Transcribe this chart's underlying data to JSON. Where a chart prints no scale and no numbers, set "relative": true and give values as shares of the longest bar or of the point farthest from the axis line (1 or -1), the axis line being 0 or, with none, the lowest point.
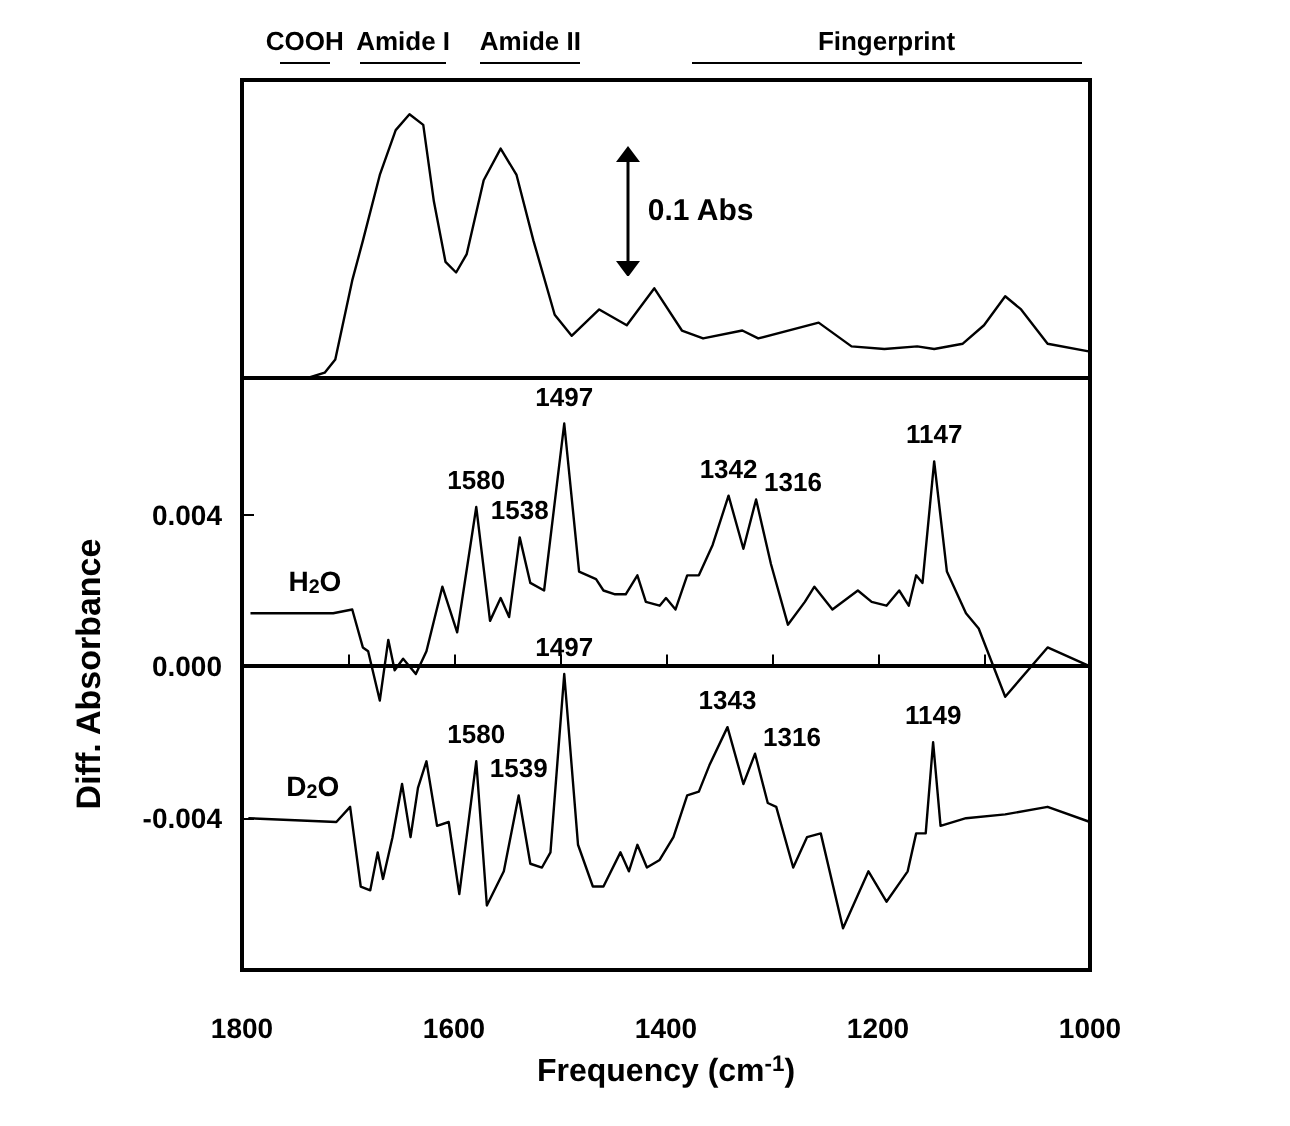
{
  "chart_data": [
    {
      "type": "line",
      "relative": true,
      "xlim": [
        1800,
        1000
      ],
      "annotations": [
        "0.1 Abs",
        "COOH",
        "Amide I",
        "Amide II",
        "Fingerprint"
      ],
      "series": [
        {
          "color": "#000000",
          "x": [
            1797,
            1738,
            1722,
            1712,
            1696,
            1686,
            1670,
            1655,
            1642,
            1629,
            1619,
            1608,
            1598,
            1588,
            1572,
            1556,
            1541,
            1525,
            1505,
            1489,
            1463,
            1437,
            1411,
            1385,
            1365,
            1328,
            1313,
            1256,
            1225,
            1194,
            1163,
            1147,
            1120,
            1100,
            1080,
            1065,
            1040,
            1000
          ],
          "values": [
            0.0,
            0.0,
            0.02,
            0.07,
            0.37,
            0.52,
            0.77,
            0.94,
            1.0,
            0.96,
            0.67,
            0.44,
            0.4,
            0.47,
            0.75,
            0.87,
            0.77,
            0.52,
            0.24,
            0.16,
            0.26,
            0.2,
            0.34,
            0.18,
            0.15,
            0.18,
            0.15,
            0.21,
            0.12,
            0.11,
            0.12,
            0.11,
            0.13,
            0.2,
            0.31,
            0.26,
            0.13,
            0.1
          ]
        }
      ]
    },
    {
      "type": "line",
      "xlim": [
        1800,
        1000
      ],
      "ylim": [
        -0.008,
        0.0076
      ],
      "xlabel": "Frequency (cm$^{-1}$)",
      "ylabel": "Diff. Absorbance",
      "xticks": [
        1800,
        {
          "value": 1700,
          "label": null
        },
        1600,
        {
          "value": 1500,
          "label": null
        },
        1400,
        {
          "value": 1300,
          "label": null
        },
        1200,
        {
          "value": 1100,
          "label": null
        },
        1000
      ],
      "yticks": [
        {
          "value": -0.004,
          "label": "-0.004"
        },
        {
          "value": 0,
          "label": "0.000"
        },
        {
          "value": 0.004,
          "label": "0.004"
        }
      ],
      "annotations": [
        {
          "text": "1580",
          "x": 1579,
          "y": 0.0042
        },
        {
          "text": "1538",
          "x": 1538,
          "y": 0.0034
        },
        {
          "text": "1497",
          "x": 1496,
          "y": 0.0064
        },
        {
          "text": "1342",
          "x": 1341,
          "y": 0.0045
        },
        {
          "text": "1316",
          "x": 1315,
          "y": 0.0044
        },
        {
          "text": "1147",
          "x": 1147,
          "y": 0.0054
        },
        {
          "text": "1580",
          "x": 1579,
          "y": -0.0025
        },
        {
          "text": "1539",
          "x": 1539,
          "y": -0.0034
        },
        {
          "text": "1497",
          "x": 1496,
          "y": -0.0002
        },
        {
          "text": "1343",
          "x": 1342,
          "y": -0.0016
        },
        {
          "text": "1316",
          "x": 1316,
          "y": -0.0023
        },
        {
          "text": "1149",
          "x": 1148,
          "y": -0.002
        }
      ],
      "series": [
        {
          "name": "H$_{2}$O",
          "color": "#000000",
          "x": [
            1792,
            1714,
            1696,
            1686,
            1681,
            1670,
            1662,
            1656,
            1648,
            1636,
            1626,
            1611,
            1597,
            1579,
            1566,
            1556,
            1548,
            1538,
            1528,
            1515,
            1496,
            1482,
            1466,
            1459,
            1448,
            1438,
            1427,
            1419,
            1406,
            1400,
            1391,
            1380,
            1369,
            1356,
            1341,
            1327,
            1315,
            1301,
            1285,
            1269,
            1260,
            1243,
            1219,
            1206,
            1192,
            1180,
            1171,
            1164,
            1158,
            1147,
            1135,
            1117,
            1105,
            1080,
            1040,
            1000
          ],
          "values": [
            0.0014,
            0.0014,
            0.0015,
            0.0005,
            0.0004,
            -0.0009,
            0.0007,
            -0.0001,
            0.0002,
            -0.0002,
            0.0004,
            0.0021,
            0.0009,
            0.0042,
            0.0012,
            0.0018,
            0.0013,
            0.0034,
            0.0022,
            0.002,
            0.0064,
            0.0025,
            0.0023,
            0.002,
            0.0019,
            0.0019,
            0.0024,
            0.0017,
            0.0016,
            0.0018,
            0.0015,
            0.0024,
            0.0024,
            0.0032,
            0.0045,
            0.0031,
            0.0044,
            0.0027,
            0.0011,
            0.0017,
            0.0021,
            0.0015,
            0.002,
            0.0017,
            0.0016,
            0.002,
            0.0016,
            0.0024,
            0.0022,
            0.0054,
            0.0025,
            0.0014,
            0.001,
            -0.0008,
            0.0005,
            0.0
          ]
        },
        {
          "name": "D$_{2}$O",
          "color": "#000000",
          "x": [
            1794,
            1711,
            1698,
            1688,
            1679,
            1672,
            1667,
            1658,
            1649,
            1641,
            1634,
            1626,
            1616,
            1605,
            1595,
            1579,
            1569,
            1553,
            1539,
            1528,
            1517,
            1509,
            1496,
            1483,
            1469,
            1459,
            1443,
            1435,
            1427,
            1418,
            1406,
            1393,
            1380,
            1369,
            1359,
            1342,
            1327,
            1316,
            1304,
            1296,
            1280,
            1267,
            1254,
            1233,
            1209,
            1192,
            1172,
            1164,
            1155,
            1148,
            1141,
            1117,
            1080,
            1040,
            1000
          ],
          "values": [
            -0.004,
            -0.0041,
            -0.0037,
            -0.0058,
            -0.0059,
            -0.0049,
            -0.0056,
            -0.0045,
            -0.0031,
            -0.0045,
            -0.0032,
            -0.0025,
            -0.0042,
            -0.0041,
            -0.006,
            -0.0025,
            -0.0063,
            -0.0054,
            -0.0034,
            -0.0052,
            -0.0053,
            -0.0049,
            -0.0002,
            -0.0047,
            -0.0058,
            -0.0058,
            -0.0049,
            -0.0054,
            -0.0047,
            -0.0053,
            -0.0051,
            -0.0045,
            -0.0034,
            -0.0033,
            -0.0026,
            -0.0016,
            -0.0031,
            -0.0023,
            -0.0036,
            -0.0037,
            -0.0053,
            -0.0045,
            -0.0044,
            -0.0069,
            -0.0054,
            -0.0062,
            -0.0054,
            -0.0044,
            -0.0044,
            -0.002,
            -0.0042,
            -0.004,
            -0.0039,
            -0.0037,
            -0.0041
          ]
        }
      ]
    }
  ]
}
